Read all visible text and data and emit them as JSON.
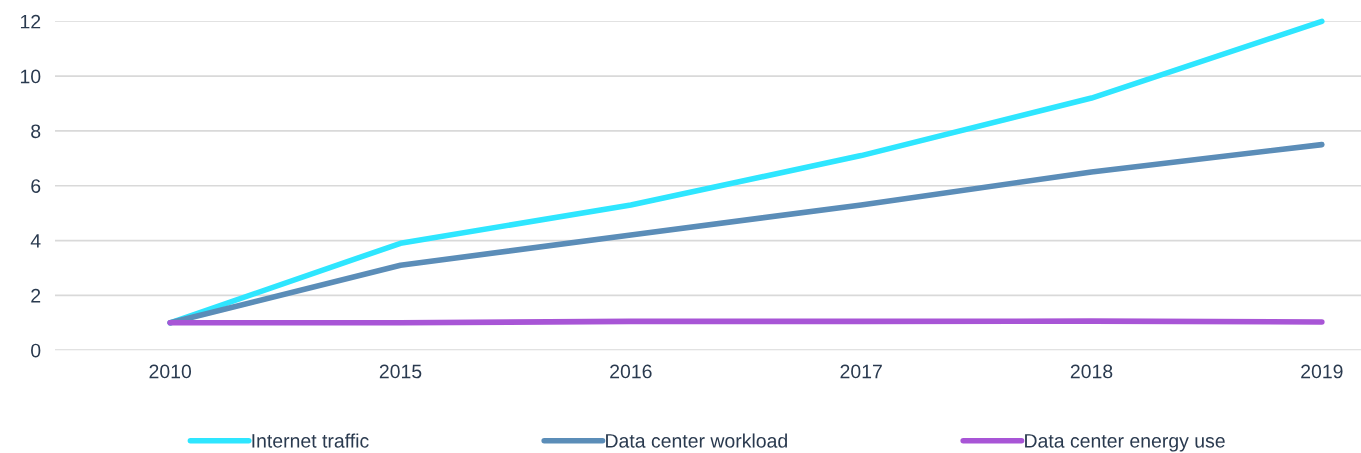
{
  "chart_data": {
    "type": "line",
    "categories": [
      "2010",
      "2015",
      "2016",
      "2017",
      "2018",
      "2019"
    ],
    "series": [
      {
        "name": "Internet traffic",
        "color": "#2ee6ff",
        "values": [
          1,
          3.9,
          5.3,
          7.1,
          9.2,
          12
        ]
      },
      {
        "name": "Data center workload",
        "color": "#5b8db8",
        "values": [
          1,
          3.1,
          4.2,
          5.3,
          6.5,
          7.5
        ]
      },
      {
        "name": "Data center energy use",
        "color": "#a855d6",
        "values": [
          1,
          1,
          1.05,
          1.05,
          1.06,
          1.03
        ]
      }
    ],
    "ylim": [
      0,
      12
    ],
    "yticks": [
      0,
      2,
      4,
      6,
      8,
      10,
      12
    ],
    "grid": "y",
    "legend": "bottom",
    "marker": "none",
    "line_style": "solid"
  }
}
